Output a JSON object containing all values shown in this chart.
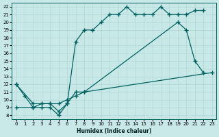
{
  "xlabel": "Humidex (Indice chaleur)",
  "bg_color": "#c8e8e8",
  "line_color": "#006060",
  "grid_color": "#b0d8d8",
  "xlim": [
    -0.5,
    23.5
  ],
  "ylim": [
    7.5,
    22.5
  ],
  "yticks": [
    8,
    9,
    10,
    11,
    12,
    13,
    14,
    15,
    16,
    17,
    18,
    19,
    20,
    21,
    22
  ],
  "xticks": [
    0,
    1,
    2,
    3,
    4,
    5,
    6,
    7,
    8,
    9,
    10,
    11,
    12,
    13,
    14,
    15,
    16,
    17,
    18,
    19,
    20,
    21,
    22,
    23
  ],
  "curve1_x": [
    0,
    1,
    2,
    3,
    4,
    5,
    6,
    7,
    8,
    9,
    10,
    11,
    12,
    13,
    14,
    15,
    16,
    17,
    18,
    19,
    20,
    21,
    22
  ],
  "curve1_y": [
    12,
    10.5,
    9.0,
    9.0,
    9.0,
    8.0,
    9.5,
    17.5,
    19.0,
    19.0,
    20.0,
    21.0,
    21.0,
    22.0,
    21.0,
    21.0,
    21.0,
    22.0,
    21.0,
    21.0,
    21.0,
    21.5,
    21.5
  ],
  "curve2_x": [
    0,
    2,
    3,
    4,
    5,
    6,
    7,
    8,
    19,
    20,
    21,
    22
  ],
  "curve2_y": [
    12,
    9.5,
    9.5,
    9.5,
    8.5,
    9.5,
    11.0,
    11.0,
    20.0,
    19.0,
    15.0,
    13.5
  ],
  "curve3_x": [
    0,
    2,
    3,
    4,
    5,
    6,
    7,
    8,
    23
  ],
  "curve3_y": [
    9.0,
    9.0,
    9.5,
    9.5,
    9.5,
    10.0,
    10.5,
    11.0,
    13.5
  ]
}
